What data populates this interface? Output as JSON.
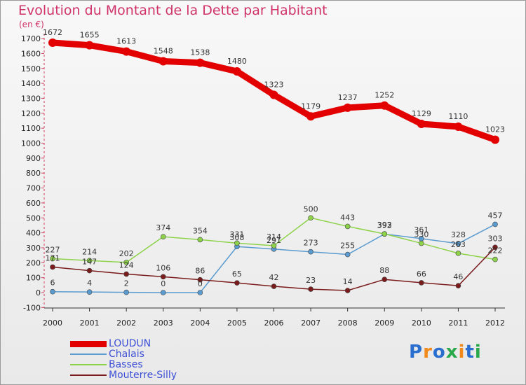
{
  "title": "Evolution du Montant de la Dette par Habitant",
  "unit_label": "(en €)",
  "logo": {
    "text": "Proxiti",
    "letters": [
      {
        "ch": "P",
        "color": "#2a6fcf"
      },
      {
        "ch": "r",
        "color": "#f08a1c"
      },
      {
        "ch": "o",
        "color": "#2a6fcf"
      },
      {
        "ch": "x",
        "color": "#2aa84a"
      },
      {
        "ch": "i",
        "color": "#f08a1c"
      },
      {
        "ch": "t",
        "color": "#2a6fcf"
      },
      {
        "ch": "i",
        "color": "#2aa84a"
      }
    ]
  },
  "chart_data": {
    "type": "line",
    "x": [
      "2000",
      "2001",
      "2002",
      "2003",
      "2004",
      "2005",
      "2006",
      "2007",
      "2008",
      "2009",
      "2010",
      "2011",
      "2012"
    ],
    "yticks": [
      -100,
      0,
      100,
      200,
      300,
      400,
      500,
      600,
      700,
      800,
      900,
      1000,
      1100,
      1200,
      1300,
      1400,
      1500,
      1600,
      1700
    ],
    "ylim": [
      -100,
      1750
    ],
    "grid": false,
    "legend_position": "bottom-left",
    "series": [
      {
        "name": "LOUDUN",
        "color": "#e30000",
        "width": 9,
        "values": [
          1672,
          1655,
          1613,
          1548,
          1538,
          1480,
          1323,
          1179,
          1237,
          1252,
          1129,
          1110,
          1023
        ]
      },
      {
        "name": "Chalais",
        "color": "#5a9bd0",
        "width": 1.5,
        "values": [
          6,
          4,
          2,
          0,
          0,
          308,
          291,
          273,
          255,
          392,
          361,
          328,
          457
        ]
      },
      {
        "name": "Basses",
        "color": "#8ed24a",
        "width": 1.5,
        "values": [
          227,
          214,
          202,
          374,
          354,
          331,
          314,
          500,
          443,
          393,
          330,
          263,
          222
        ]
      },
      {
        "name": "Mouterre-Silly",
        "color": "#7a1c1c",
        "width": 1.5,
        "values": [
          171,
          147,
          124,
          106,
          86,
          65,
          42,
          23,
          14,
          88,
          66,
          46,
          303
        ]
      }
    ]
  }
}
